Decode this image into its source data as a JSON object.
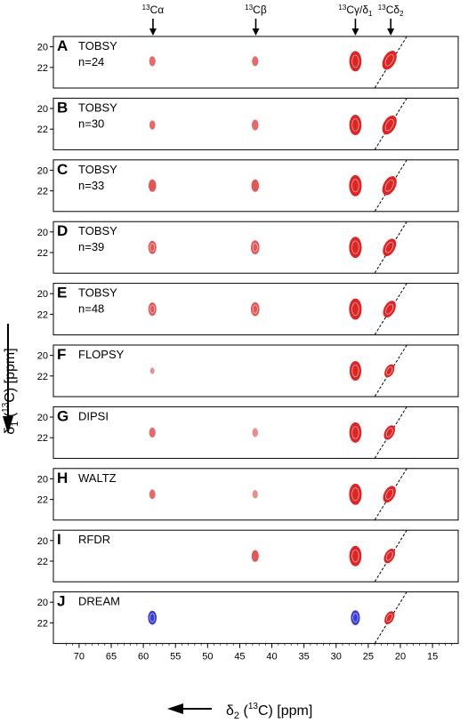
{
  "chart_data": {
    "type": "2D NMR contour plot stack",
    "top_labels": [
      {
        "id": "ca",
        "x": 58.5,
        "pre": "13",
        "main": "Cα",
        "sub": ""
      },
      {
        "id": "cb",
        "x": 42.5,
        "pre": "13",
        "main": "Cβ",
        "sub": ""
      },
      {
        "id": "cg",
        "x": 27.0,
        "pre": "13",
        "main": "Cγ/δ",
        "sub": "1"
      },
      {
        "id": "cd",
        "x": 21.5,
        "pre": "13",
        "main": "Cδ",
        "sub": "2"
      }
    ],
    "xaxis": {
      "label_main": "δ",
      "label_sub": "2",
      "label_sup": "13",
      "label_tail": "C) [ppm]",
      "range": [
        74,
        11
      ],
      "ticks": [
        70,
        65,
        60,
        55,
        50,
        45,
        40,
        35,
        30,
        25,
        20,
        15
      ]
    },
    "yaxis": {
      "label_main": "δ",
      "label_sub": "1",
      "label_sup": "13",
      "label_tail": "C) [ppm]",
      "range": [
        19,
        24
      ],
      "ticks": [
        20,
        22
      ]
    },
    "panels": [
      {
        "letter": "A",
        "method": "TOBSY",
        "n": "n=24",
        "peaks": [
          {
            "x": 58.6,
            "y": 21.4,
            "i": 0.35,
            "c": "#e8696a"
          },
          {
            "x": 42.6,
            "y": 21.4,
            "i": 0.35,
            "c": "#e8696a"
          },
          {
            "x": 27.0,
            "y": 21.4,
            "i": 1.0,
            "c": "#e02424"
          },
          {
            "x": 21.7,
            "y": 21.3,
            "i": 1.0,
            "c": "#e02424"
          }
        ]
      },
      {
        "letter": "B",
        "method": "TOBSY",
        "n": "n=30",
        "peaks": [
          {
            "x": 58.6,
            "y": 21.6,
            "i": 0.3,
            "c": "#e8696a"
          },
          {
            "x": 42.6,
            "y": 21.6,
            "i": 0.4,
            "c": "#e8696a"
          },
          {
            "x": 27.0,
            "y": 21.6,
            "i": 1.0,
            "c": "#e02424"
          },
          {
            "x": 21.7,
            "y": 21.6,
            "i": 1.0,
            "c": "#e02424"
          }
        ]
      },
      {
        "letter": "C",
        "method": "TOBSY",
        "n": "n=33",
        "peaks": [
          {
            "x": 58.6,
            "y": 21.5,
            "i": 0.5,
            "c": "#e45656"
          },
          {
            "x": 42.6,
            "y": 21.5,
            "i": 0.5,
            "c": "#e45656"
          },
          {
            "x": 27.0,
            "y": 21.5,
            "i": 1.05,
            "c": "#e02424"
          },
          {
            "x": 21.7,
            "y": 21.5,
            "i": 1.0,
            "c": "#e02424"
          }
        ]
      },
      {
        "letter": "D",
        "method": "TOBSY",
        "n": "n=39",
        "peaks": [
          {
            "x": 58.6,
            "y": 21.5,
            "i": 0.55,
            "c": "#e45656"
          },
          {
            "x": 42.6,
            "y": 21.5,
            "i": 0.6,
            "c": "#e45656"
          },
          {
            "x": 27.0,
            "y": 21.5,
            "i": 1.05,
            "c": "#e02424"
          },
          {
            "x": 21.7,
            "y": 21.5,
            "i": 0.9,
            "c": "#e02424"
          }
        ]
      },
      {
        "letter": "E",
        "method": "TOBSY",
        "n": "n=48",
        "peaks": [
          {
            "x": 58.6,
            "y": 21.5,
            "i": 0.55,
            "c": "#e45656"
          },
          {
            "x": 42.6,
            "y": 21.5,
            "i": 0.6,
            "c": "#e45656"
          },
          {
            "x": 27.0,
            "y": 21.5,
            "i": 1.05,
            "c": "#e02424"
          },
          {
            "x": 21.7,
            "y": 21.5,
            "i": 0.85,
            "c": "#e02424"
          }
        ]
      },
      {
        "letter": "F",
        "method": "FLOPSY",
        "n": "",
        "peaks": [
          {
            "x": 58.6,
            "y": 21.5,
            "i": 0.12,
            "c": "#ec8c8c"
          },
          {
            "x": 27.0,
            "y": 21.5,
            "i": 0.95,
            "c": "#e02424"
          },
          {
            "x": 21.7,
            "y": 21.5,
            "i": 0.6,
            "c": "#e02424"
          }
        ]
      },
      {
        "letter": "G",
        "method": "DIPSI",
        "n": "",
        "peaks": [
          {
            "x": 58.6,
            "y": 21.5,
            "i": 0.35,
            "c": "#e8696a"
          },
          {
            "x": 42.6,
            "y": 21.5,
            "i": 0.28,
            "c": "#ec8c8c"
          },
          {
            "x": 27.0,
            "y": 21.5,
            "i": 1.0,
            "c": "#e02424"
          },
          {
            "x": 21.7,
            "y": 21.5,
            "i": 0.7,
            "c": "#e02424"
          }
        ]
      },
      {
        "letter": "H",
        "method": "WALTZ",
        "n": "",
        "peaks": [
          {
            "x": 58.6,
            "y": 21.5,
            "i": 0.32,
            "c": "#e8696a"
          },
          {
            "x": 42.6,
            "y": 21.5,
            "i": 0.25,
            "c": "#ec8c8c"
          },
          {
            "x": 27.0,
            "y": 21.5,
            "i": 1.05,
            "c": "#e02424"
          },
          {
            "x": 21.7,
            "y": 21.5,
            "i": 0.85,
            "c": "#e02424"
          }
        ]
      },
      {
        "letter": "I",
        "method": "RFDR",
        "n": "",
        "peaks": [
          {
            "x": 42.6,
            "y": 21.5,
            "i": 0.45,
            "c": "#e45656"
          },
          {
            "x": 27.0,
            "y": 21.5,
            "i": 1.0,
            "c": "#e02424"
          },
          {
            "x": 21.7,
            "y": 21.5,
            "i": 0.7,
            "c": "#e02424"
          }
        ]
      },
      {
        "letter": "J",
        "method": "DREAM",
        "n": "",
        "peaks": [
          {
            "x": 58.6,
            "y": 21.5,
            "i": 0.6,
            "c": "#3a3ad6"
          },
          {
            "x": 27.0,
            "y": 21.5,
            "i": 0.65,
            "c": "#3a3ad6"
          },
          {
            "x": 21.7,
            "y": 21.5,
            "i": 0.6,
            "c": "#e02424"
          }
        ]
      }
    ],
    "diagonal": {
      "style": "dashed",
      "color": "#000000"
    },
    "grid": false,
    "legend": "none"
  }
}
